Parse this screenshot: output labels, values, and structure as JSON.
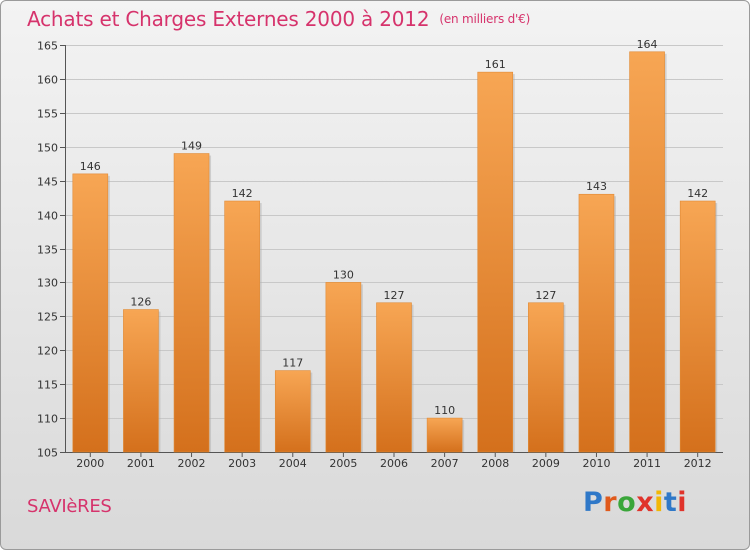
{
  "header": {
    "title": "Achats et Charges Externes 2000 à 2012",
    "subtitle": "(en milliers d'€)"
  },
  "footer": {
    "location": "SAVIèRES",
    "logo_text": "Proxiti",
    "logo_letter_colors": [
      "#2f78c8",
      "#e05a1c",
      "#3aa63a",
      "#e0332b",
      "#f2b705",
      "#2f78c8",
      "#e0332b"
    ]
  },
  "colors": {
    "title": "#d6336c",
    "bar_light": "#f7a654",
    "bar_dark": "#d4701c",
    "grid": "#c8c8c8"
  },
  "chart_data": {
    "type": "bar",
    "title": "Achats et Charges Externes 2000 à 2012",
    "subtitle": "(en milliers d'€)",
    "xlabel": "",
    "ylabel": "",
    "categories": [
      "2000",
      "2001",
      "2002",
      "2003",
      "2004",
      "2005",
      "2006",
      "2007",
      "2008",
      "2009",
      "2010",
      "2011",
      "2012"
    ],
    "values": [
      146,
      126,
      149,
      142,
      117,
      130,
      127,
      110,
      161,
      127,
      143,
      164,
      142
    ],
    "ylim": [
      105,
      165
    ],
    "yticks": [
      105,
      110,
      115,
      120,
      125,
      130,
      135,
      140,
      145,
      150,
      155,
      160,
      165
    ],
    "grid": true
  }
}
